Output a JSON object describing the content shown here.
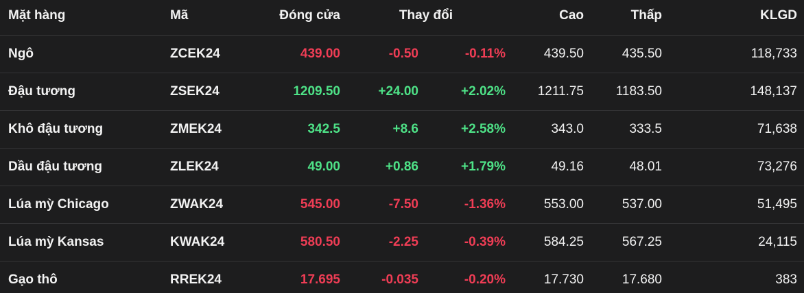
{
  "table": {
    "header": [
      "Mặt hàng",
      "Mã",
      "Đóng cửa",
      "Thay đổi",
      "Cao",
      "Thấp",
      "KLGD"
    ],
    "rows": [
      {
        "cells": [
          "Ngô",
          "ZCEK24",
          "439.00",
          "-0.50",
          "-0.11%",
          "439.50",
          "435.50",
          "118,733"
        ],
        "color": "#ef3d55"
      },
      {
        "cells": [
          "Đậu tương",
          "ZSEK24",
          "1209.50",
          "+24.00",
          "+2.02%",
          "1211.75",
          "1183.50",
          "148,137"
        ],
        "color": "#4ee287"
      },
      {
        "cells": [
          "Khô đậu tương",
          "ZMEK24",
          "342.5",
          "+8.6",
          "+2.58%",
          "343.0",
          "333.5",
          "71,638"
        ],
        "color": "#4ee287"
      },
      {
        "cells": [
          "Dầu đậu tương",
          "ZLEK24",
          "49.00",
          "+0.86",
          "+1.79%",
          "49.16",
          "48.01",
          "73,276"
        ],
        "color": "#4ee287"
      },
      {
        "cells": [
          "Lúa mỳ Chicago",
          "ZWAK24",
          "545.00",
          "-7.50",
          "-1.36%",
          "553.00",
          "537.00",
          "51,495"
        ],
        "color": "#ef3d55"
      },
      {
        "cells": [
          "Lúa mỳ Kansas",
          "KWAK24",
          "580.50",
          "-2.25",
          "-0.39%",
          "584.25",
          "567.25",
          "24,115"
        ],
        "color": "#ef3d55"
      },
      {
        "cells": [
          "Gạo thô",
          "RREK24",
          "17.695",
          "-0.035",
          "-0.20%",
          "17.730",
          "17.680",
          "383"
        ],
        "color": "#ef3d55"
      }
    ]
  }
}
